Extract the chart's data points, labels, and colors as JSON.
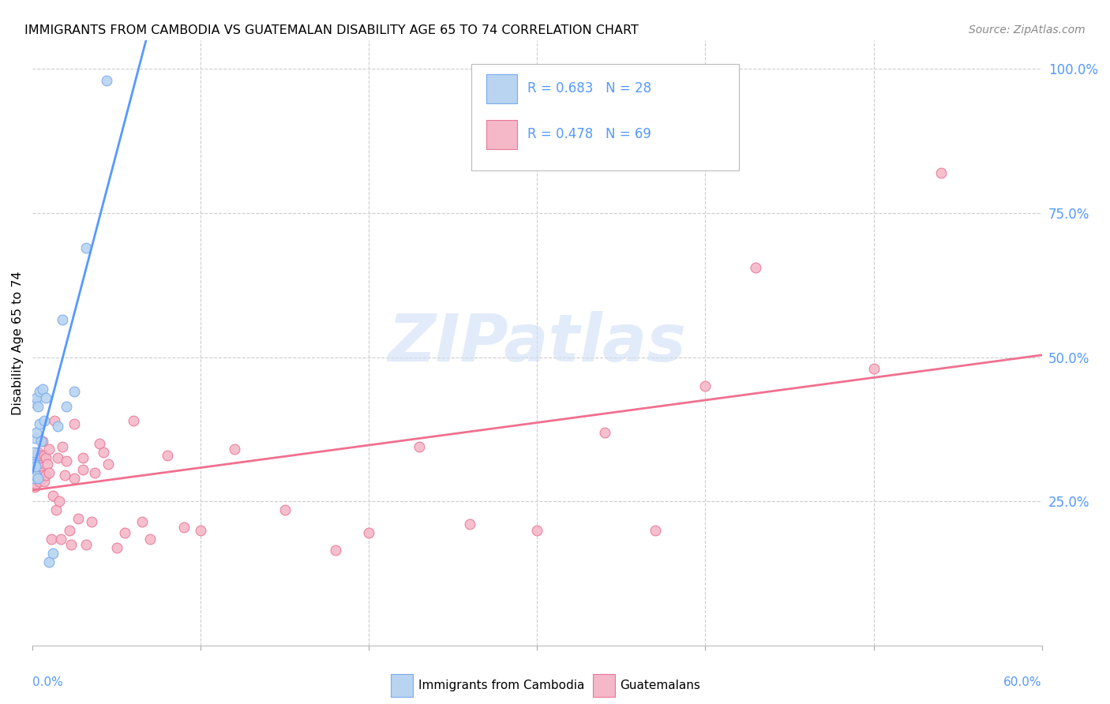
{
  "title": "IMMIGRANTS FROM CAMBODIA VS GUATEMALAN DISABILITY AGE 65 TO 74 CORRELATION CHART",
  "source": "Source: ZipAtlas.com",
  "ylabel": "Disability Age 65 to 74",
  "legend_label1": "Immigrants from Cambodia",
  "legend_label2": "Guatemalans",
  "R1": 0.683,
  "N1": 28,
  "R2": 0.478,
  "N2": 69,
  "color_cambodia_fill": "#b8d4f0",
  "color_cambodia_edge": "#7aaaee",
  "color_guatemalan_fill": "#f5b8c8",
  "color_guatemalan_edge": "#e87898",
  "color_line_cambodia": "#5599ff",
  "color_line_guatemalan": "#f07090",
  "color_right_axis": "#5599ff",
  "color_grid": "#cccccc",
  "watermark_text": "ZIPatlas",
  "watermark_color": "#d0dff5",
  "xlim": [
    0,
    0.6
  ],
  "ylim": [
    0,
    1.05
  ],
  "yticks": [
    0.25,
    0.5,
    0.75,
    1.0
  ],
  "ytick_labels": [
    "25.0%",
    "50.0%",
    "75.0%",
    "100.0%"
  ],
  "xtick_labels_show": [
    "0.0%",
    "60.0%"
  ],
  "cambodia_x": [
    0.0003,
    0.0005,
    0.0007,
    0.001,
    0.001,
    0.0012,
    0.0015,
    0.0018,
    0.002,
    0.002,
    0.0022,
    0.0025,
    0.003,
    0.003,
    0.004,
    0.004,
    0.005,
    0.006,
    0.007,
    0.008,
    0.01,
    0.012,
    0.015,
    0.018,
    0.02,
    0.025,
    0.032,
    0.044
  ],
  "cambodia_y": [
    0.31,
    0.3,
    0.32,
    0.335,
    0.29,
    0.315,
    0.36,
    0.295,
    0.42,
    0.31,
    0.43,
    0.37,
    0.415,
    0.29,
    0.44,
    0.385,
    0.355,
    0.445,
    0.39,
    0.43,
    0.145,
    0.16,
    0.38,
    0.565,
    0.415,
    0.44,
    0.69,
    0.98
  ],
  "guatemalan_x": [
    0.0003,
    0.0005,
    0.001,
    0.001,
    0.0013,
    0.0015,
    0.002,
    0.002,
    0.002,
    0.003,
    0.003,
    0.003,
    0.004,
    0.004,
    0.005,
    0.005,
    0.006,
    0.006,
    0.007,
    0.007,
    0.008,
    0.008,
    0.009,
    0.01,
    0.01,
    0.011,
    0.012,
    0.013,
    0.014,
    0.015,
    0.016,
    0.017,
    0.018,
    0.019,
    0.02,
    0.022,
    0.023,
    0.025,
    0.025,
    0.027,
    0.03,
    0.03,
    0.032,
    0.035,
    0.037,
    0.04,
    0.042,
    0.045,
    0.05,
    0.055,
    0.06,
    0.065,
    0.07,
    0.08,
    0.09,
    0.1,
    0.12,
    0.15,
    0.18,
    0.2,
    0.23,
    0.26,
    0.3,
    0.34,
    0.37,
    0.4,
    0.43,
    0.5,
    0.54
  ],
  "guatemalan_y": [
    0.29,
    0.31,
    0.285,
    0.31,
    0.275,
    0.33,
    0.295,
    0.31,
    0.28,
    0.335,
    0.295,
    0.315,
    0.285,
    0.325,
    0.3,
    0.33,
    0.295,
    0.355,
    0.33,
    0.285,
    0.325,
    0.295,
    0.315,
    0.3,
    0.34,
    0.185,
    0.26,
    0.39,
    0.235,
    0.325,
    0.25,
    0.185,
    0.345,
    0.295,
    0.32,
    0.2,
    0.175,
    0.385,
    0.29,
    0.22,
    0.305,
    0.325,
    0.175,
    0.215,
    0.3,
    0.35,
    0.335,
    0.315,
    0.17,
    0.195,
    0.39,
    0.215,
    0.185,
    0.33,
    0.205,
    0.2,
    0.34,
    0.235,
    0.165,
    0.195,
    0.345,
    0.21,
    0.2,
    0.37,
    0.2,
    0.45,
    0.655,
    0.48,
    0.82
  ]
}
